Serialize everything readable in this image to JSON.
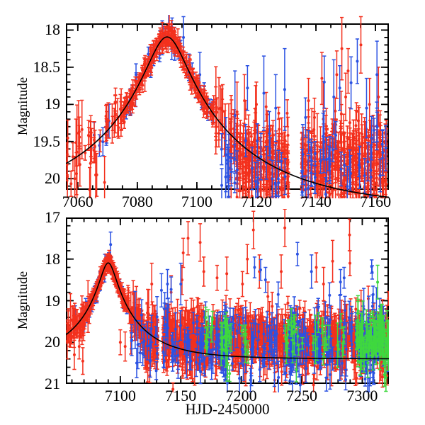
{
  "figure_title": "",
  "colors": {
    "axis": "#000000",
    "model": "#000000",
    "red": "#f3301d",
    "blue": "#2b52e2",
    "green": "#3fd83f",
    "background": "#ffffff"
  },
  "segment_format": "[t_start, t_end, n_points, center_mag_or_'model', sigma_mag, errbar_min, errbar_max]",
  "outlier_format": "[t, magnitude, errbar]",
  "chart_data": [
    {
      "type": "scatter",
      "panel": "top",
      "title": "",
      "xlabel": "",
      "ylabel": "Magnitude",
      "xlim": [
        7056,
        7164.5
      ],
      "ylim": [
        17.91,
        20.15
      ],
      "y_axis": "inverted-magnitude",
      "grid": false,
      "legend": "none",
      "xticks": [
        "7060",
        "7080",
        "7100",
        "7120",
        "7140",
        "7160"
      ],
      "xtick_minor": 5,
      "yticks": [
        "18",
        "18.5",
        "19",
        "19.5",
        "20"
      ],
      "ytick_minor": 0.1,
      "model_curve": {
        "shape": "paczynski-microlensing",
        "t0": 7090,
        "tE": 52,
        "u0": 0.12,
        "baseline_mag": 20.4,
        "peak_mag": 18.09,
        "color": "model"
      },
      "series": [
        {
          "name": "blue-photometry-peak",
          "color": "blue",
          "seed": 11,
          "segments": [
            [
              7065,
              7075,
              6,
              "model",
              0.12,
              0.1,
              0.25
            ],
            [
              7075,
              7106,
              55,
              "model",
              0.07,
              0.05,
              0.15
            ]
          ],
          "outliers": [
            [
              7095.5,
              18.1,
              0.28
            ],
            [
              7101,
              18.6,
              0.3
            ]
          ]
        },
        {
          "name": "red-photometry",
          "color": "red",
          "seed": 7,
          "segments": [
            [
              7056,
              7062,
              14,
              "model",
              0.26,
              0.12,
              0.38
            ],
            [
              7062,
              7075,
              32,
              "model",
              0.15,
              0.08,
              0.3
            ],
            [
              7075,
              7106,
              300,
              "model",
              0.055,
              0.04,
              0.12
            ],
            [
              7106,
              7113,
              26,
              "model",
              0.14,
              0.12,
              0.38
            ],
            [
              7113,
              7131,
              270,
              19.82,
              0.24,
              0.08,
              0.28
            ],
            [
              7135,
              7163.5,
              400,
              19.8,
              0.24,
              0.08,
              0.28
            ]
          ],
          "outliers": [
            [
              7059,
              20.0,
              0.3
            ],
            [
              7064,
              20.15,
              0.3
            ],
            [
              7066,
              19.95,
              0.32
            ],
            [
              7069,
              20.05,
              0.35
            ],
            [
              7108,
              19.05,
              0.3
            ],
            [
              7111.5,
              19.6,
              0.72
            ],
            [
              7113.5,
              19.1,
              0.4
            ],
            [
              7116,
              18.95,
              0.35
            ],
            [
              7120,
              19.0,
              0.3
            ],
            [
              7137.5,
              18.95,
              0.3
            ],
            [
              7142,
              18.65,
              0.35
            ],
            [
              7147,
              18.6,
              0.32
            ],
            [
              7148.7,
              18.25,
              0.42
            ],
            [
              7150,
              18.9,
              0.32
            ],
            [
              7150.8,
              18.55,
              0.3
            ],
            [
              7155.1,
              18.2,
              0.38
            ],
            [
              7158,
              19.0,
              0.35
            ],
            [
              7161,
              18.9,
              0.4
            ]
          ]
        },
        {
          "name": "blue-photometry-noise",
          "color": "blue",
          "seed": 23,
          "segments": [
            [
              7108,
              7131,
              32,
              19.85,
              0.3,
              0.1,
              0.32
            ],
            [
              7135,
              7163.5,
              45,
              19.85,
              0.3,
              0.1,
              0.32
            ]
          ],
          "outliers": [
            [
              7112.8,
              19.15,
              0.6
            ],
            [
              7117,
              18.78,
              0.3
            ],
            [
              7122.5,
              18.85,
              0.5
            ],
            [
              7126.5,
              19.05,
              0.45
            ],
            [
              7129.5,
              18.8,
              0.55
            ],
            [
              7142.8,
              18.7,
              0.35
            ],
            [
              7146,
              18.9,
              0.5
            ],
            [
              7148,
              18.78,
              0.3
            ],
            [
              7151.8,
              18.71,
              0.35
            ],
            [
              7153.9,
              18.42,
              0.3
            ],
            [
              7157,
              19.05,
              0.4
            ],
            [
              7160.5,
              18.6,
              0.45
            ]
          ]
        }
      ]
    },
    {
      "type": "scatter",
      "panel": "bottom",
      "title": "",
      "xlabel": "HJD-2450000",
      "ylabel": "Magnitude",
      "xlim": [
        7055,
        7322
      ],
      "ylim": [
        17,
        21
      ],
      "y_axis": "inverted-magnitude",
      "grid": false,
      "legend": "none",
      "xticks": [
        "7100",
        "7150",
        "7200",
        "7250",
        "7300"
      ],
      "xtick_minor": 10,
      "yticks": [
        "17",
        "18",
        "19",
        "20",
        "21"
      ],
      "ytick_minor": 0.2,
      "model_curve": {
        "shape": "paczynski-microlensing",
        "t0": 7090,
        "tE": 52,
        "u0": 0.12,
        "baseline_mag": 20.4,
        "peak_mag": 18.09,
        "color": "model"
      },
      "series": [
        {
          "name": "blue-photometry-peak",
          "color": "blue",
          "seed": 31,
          "segments": [
            [
              7062,
              7075,
              8,
              "model",
              0.15,
              0.1,
              0.3
            ],
            [
              7075,
              7106,
              48,
              "model",
              0.08,
              0.05,
              0.18
            ]
          ],
          "outliers": [
            [
              7092,
              17.65,
              0.3
            ],
            [
              7087,
              18.3,
              0.25
            ]
          ]
        },
        {
          "name": "red-photometry",
          "color": "red",
          "seed": 17,
          "segments": [
            [
              7055.5,
              7062,
              16,
              "model",
              0.28,
              0.15,
              0.45
            ],
            [
              7062,
              7075,
              36,
              "model",
              0.17,
              0.1,
              0.35
            ],
            [
              7075,
              7106,
              280,
              "model",
              0.06,
              0.05,
              0.14
            ],
            [
              7106,
              7120,
              55,
              "model",
              0.16,
              0.12,
              0.4
            ],
            [
              7120,
              7131,
              90,
              19.9,
              0.28,
              0.12,
              0.35
            ],
            [
              7135,
              7322,
              1050,
              19.97,
              0.3,
              0.12,
              0.35
            ]
          ],
          "outliers": [
            [
              7062,
              20.3,
              0.35
            ],
            [
              7066,
              20.1,
              0.3
            ],
            [
              7069,
              20.45,
              0.32
            ],
            [
              7100,
              20.0,
              0.3
            ],
            [
              7104,
              20.1,
              0.35
            ],
            [
              7126,
              18.6,
              0.5
            ],
            [
              7142,
              18.8,
              0.4
            ],
            [
              7151,
              18.5,
              0.35
            ],
            [
              7152,
              17.85,
              0.35
            ],
            [
              7156,
              17.5,
              0.4
            ],
            [
              7166,
              17.6,
              0.45
            ],
            [
              7169,
              18.3,
              0.35
            ],
            [
              7180,
              18.45,
              0.3
            ],
            [
              7188,
              18.35,
              0.4
            ],
            [
              7201,
              18.6,
              0.3
            ],
            [
              7205,
              18.0,
              0.35
            ],
            [
              7210,
              17.3,
              0.45
            ],
            [
              7215,
              18.3,
              0.4
            ],
            [
              7222,
              18.9,
              0.35
            ],
            [
              7233,
              18.3,
              0.4
            ],
            [
              7236,
              17.25,
              0.45
            ],
            [
              7262,
              18.2,
              0.35
            ],
            [
              7268,
              18.6,
              0.4
            ],
            [
              7275.5,
              18.05,
              0.5
            ],
            [
              7289.5,
              17.42,
              0.38
            ],
            [
              7289.8,
              18.1,
              0.3
            ],
            [
              7299,
              19.0,
              0.25
            ],
            [
              7305,
              18.95,
              0.3
            ]
          ]
        },
        {
          "name": "blue-photometry-noise",
          "color": "blue",
          "seed": 43,
          "segments": [
            [
              7108,
              7131,
              22,
              19.9,
              0.35,
              0.12,
              0.4
            ],
            [
              7135,
              7322,
              210,
              20.0,
              0.38,
              0.12,
              0.4
            ],
            [
              7183,
              7190,
              40,
              20.0,
              0.35,
              0.12,
              0.35
            ],
            [
              7240,
              7248,
              45,
              19.95,
              0.32,
              0.12,
              0.35
            ],
            [
              7260,
              7266,
              25,
              20.0,
              0.35,
              0.12,
              0.35
            ],
            [
              7297,
              7313,
              55,
              20.0,
              0.4,
              0.12,
              0.35
            ]
          ],
          "outliers": [
            [
              7134,
              18.75,
              0.4
            ],
            [
              7139,
              18.6,
              0.35
            ],
            [
              7142,
              18.73,
              0.3
            ],
            [
              7150,
              18.6,
              0.5
            ],
            [
              7211,
              18.2,
              0.25
            ],
            [
              7216,
              18.26,
              0.25
            ],
            [
              7220,
              18.5,
              0.3
            ],
            [
              7230.5,
              18.85,
              0.3
            ],
            [
              7246.4,
              17.88,
              0.28
            ],
            [
              7258,
              18.3,
              0.4
            ],
            [
              7273,
              18.87,
              0.3
            ],
            [
              7282,
              18.55,
              0.3
            ],
            [
              7285,
              18.45,
              0.25
            ],
            [
              7307.8,
              18.18,
              0.16
            ],
            [
              7308.2,
              18.32,
              0.16
            ],
            [
              7309,
              18.85,
              0.2
            ]
          ]
        },
        {
          "name": "green-photometry",
          "color": "green",
          "seed": 59,
          "segments": [
            [
              7168,
              7178,
              10,
              19.9,
              0.28,
              0.12,
              0.35
            ],
            [
              7183,
              7192,
              22,
              20.0,
              0.3,
              0.12,
              0.35
            ],
            [
              7200,
              7206,
              8,
              19.9,
              0.3,
              0.12,
              0.35
            ],
            [
              7235,
              7252,
              18,
              19.9,
              0.3,
              0.12,
              0.35
            ],
            [
              7258,
              7285,
              18,
              19.95,
              0.3,
              0.12,
              0.35
            ],
            [
              7295,
              7322,
              110,
              19.95,
              0.32,
              0.12,
              0.35
            ]
          ],
          "outliers": []
        }
      ]
    }
  ]
}
